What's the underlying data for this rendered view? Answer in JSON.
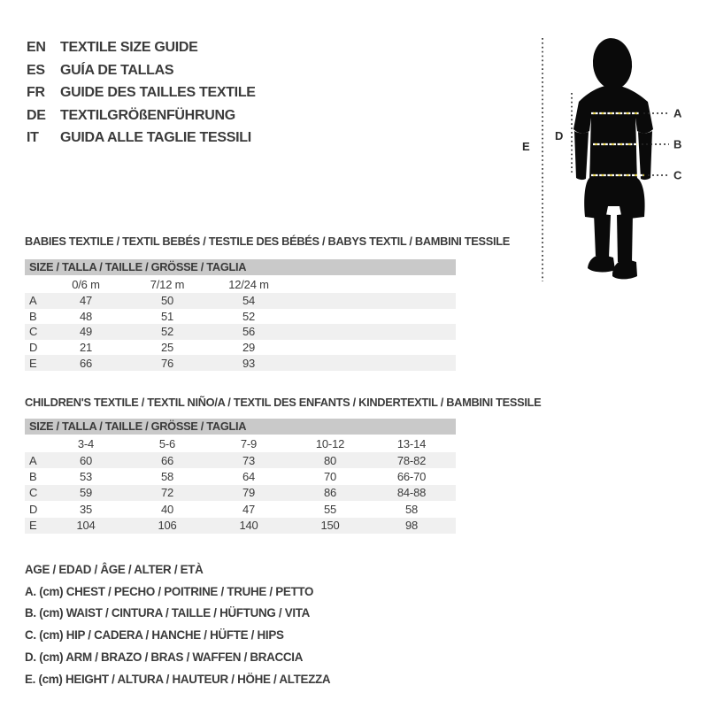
{
  "languages": [
    {
      "code": "EN",
      "title": "TEXTILE SIZE GUIDE"
    },
    {
      "code": "ES",
      "title": "GUÍA DE TALLAS"
    },
    {
      "code": "FR",
      "title": "GUIDE DES TAILLES TEXTILE"
    },
    {
      "code": "DE",
      "title": "TEXTILGRÖßENFÜHRUNG"
    },
    {
      "code": "IT",
      "title": "GUIDA ALLE TAGLIE TESSILI"
    }
  ],
  "figure": {
    "label_a": "A",
    "label_b": "B",
    "label_c": "C",
    "label_d": "D",
    "label_e": "E"
  },
  "babies": {
    "title": "BABIES TEXTILE / TEXTIL BEBÉS / TESTILE DES BÉBÉS / BABYS TEXTIL / BAMBINI TESSILE",
    "size_header": "SIZE / TALLA / TAILLE / GRÖSSE / TAGLIA",
    "columns": [
      "0/6 m",
      "7/12 m",
      "12/24 m"
    ],
    "rows": [
      {
        "label": "A",
        "values": [
          "47",
          "50",
          "54"
        ]
      },
      {
        "label": "B",
        "values": [
          "48",
          "51",
          "52"
        ]
      },
      {
        "label": "C",
        "values": [
          "49",
          "52",
          "56"
        ]
      },
      {
        "label": "D",
        "values": [
          "21",
          "25",
          "29"
        ]
      },
      {
        "label": "E",
        "values": [
          "66",
          "76",
          "93"
        ]
      }
    ]
  },
  "children": {
    "title": "CHILDREN'S TEXTILE / TEXTIL NIÑO/A / TEXTIL DES ENFANTS / KINDERTEXTIL / BAMBINI TESSILE",
    "size_header": "SIZE / TALLA / TAILLE / GRÖSSE / TAGLIA",
    "columns": [
      "3-4",
      "5-6",
      "7-9",
      "10-12",
      "13-14"
    ],
    "rows": [
      {
        "label": "A",
        "values": [
          "60",
          "66",
          "73",
          "80",
          "78-82"
        ]
      },
      {
        "label": "B",
        "values": [
          "53",
          "58",
          "64",
          "70",
          "66-70"
        ]
      },
      {
        "label": "C",
        "values": [
          "59",
          "72",
          "79",
          "86",
          "84-88"
        ]
      },
      {
        "label": "D",
        "values": [
          "35",
          "40",
          "47",
          "55",
          "58"
        ]
      },
      {
        "label": "E",
        "values": [
          "104",
          "106",
          "140",
          "150",
          "98"
        ]
      }
    ]
  },
  "legend": {
    "age": "AGE / EDAD / ÂGE / ALTER / ETÀ",
    "items": [
      "A. (cm) CHEST / PECHO / POITRINE / TRUHE / PETTO",
      "B. (cm) WAIST / CINTURA / TAILLE / HÜFTUNG / VITA",
      "C. (cm) HIP / CADERA / HANCHE / HÜFTE / HIPS",
      "D. (cm) ARM / BRAZO / BRAS / WAFFEN / BRACCIA",
      "E. (cm) HEIGHT / ALTURA / HAUTEUR / HÖHE / ALTEZZA"
    ]
  },
  "colors": {
    "text": "#3b3b3b",
    "band_gray": "#c9c9c9",
    "row_stripe": "#f0f0f0",
    "silhouette": "#0a0a0a",
    "dash_yellow": "#e3cf45",
    "dash_white": "#ffffff",
    "line_black": "#262626"
  }
}
